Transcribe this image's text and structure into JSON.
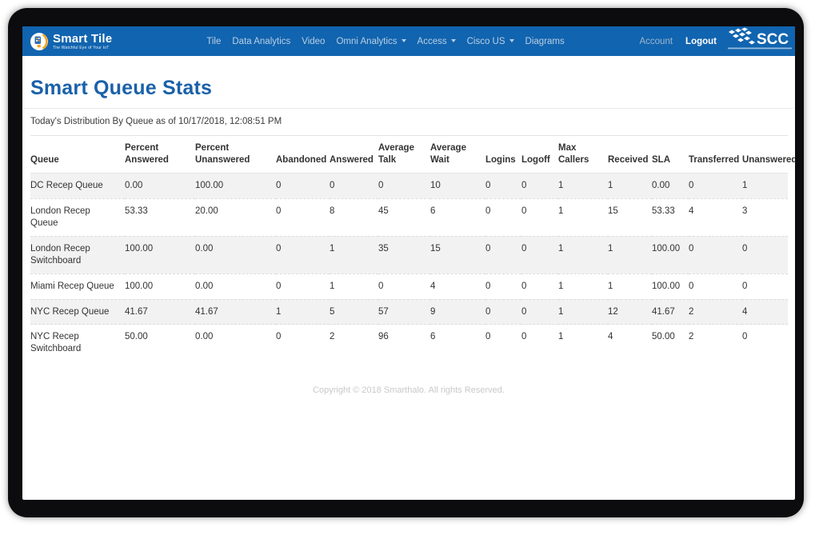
{
  "navbar": {
    "brand": {
      "name": "Smart Tile",
      "tagline": "The Watchful Eye of Your IoT"
    },
    "links": [
      {
        "label": "Tile",
        "dropdown": false
      },
      {
        "label": "Data Analytics",
        "dropdown": false
      },
      {
        "label": "Video",
        "dropdown": false
      },
      {
        "label": "Omni Analytics",
        "dropdown": true
      },
      {
        "label": "Access",
        "dropdown": true
      },
      {
        "label": "Cisco US",
        "dropdown": true
      },
      {
        "label": "Diagrams",
        "dropdown": false
      }
    ],
    "right_links": [
      {
        "label": "Account"
      },
      {
        "label": "Logout"
      }
    ],
    "scc_logo_text": "SCC"
  },
  "page": {
    "title": "Smart Queue Stats",
    "subtitle": "Today's Distribution By Queue as of 10/17/2018, 12:08:51 PM",
    "footer": "Copyright © 2018 Smarthalo. All rights Reserved."
  },
  "table": {
    "columns": [
      "Queue",
      "Percent Answered",
      "Percent Unanswered",
      "Abandoned",
      "Answered",
      "Average Talk",
      "Average Wait",
      "Logins",
      "Logoff",
      "Max Callers",
      "Received",
      "SLA",
      "Transferred",
      "Unanswered"
    ],
    "rows": [
      [
        "DC Recep Queue",
        "0.00",
        "100.00",
        "0",
        "0",
        "0",
        "10",
        "0",
        "0",
        "1",
        "1",
        "0.00",
        "0",
        "1"
      ],
      [
        "London Recep Queue",
        "53.33",
        "20.00",
        "0",
        "8",
        "45",
        "6",
        "0",
        "0",
        "1",
        "15",
        "53.33",
        "4",
        "3"
      ],
      [
        "London Recep Switchboard",
        "100.00",
        "0.00",
        "0",
        "1",
        "35",
        "15",
        "0",
        "0",
        "1",
        "1",
        "100.00",
        "0",
        "0"
      ],
      [
        "Miami Recep Queue",
        "100.00",
        "0.00",
        "0",
        "1",
        "0",
        "4",
        "0",
        "0",
        "1",
        "1",
        "100.00",
        "0",
        "0"
      ],
      [
        "NYC Recep Queue",
        "41.67",
        "41.67",
        "1",
        "5",
        "57",
        "9",
        "0",
        "0",
        "1",
        "12",
        "41.67",
        "2",
        "4"
      ],
      [
        "NYC Recep Switchboard",
        "50.00",
        "0.00",
        "0",
        "2",
        "96",
        "6",
        "0",
        "0",
        "1",
        "4",
        "50.00",
        "2",
        "0"
      ]
    ]
  },
  "colors": {
    "navbar_blue": "#1164af",
    "title_blue": "#1a61a9",
    "row_stripe": "#f2f2f2",
    "table_border": "#dddddd",
    "nav_link": "#b9cfe4",
    "footer_gray": "#c9c9c9"
  }
}
